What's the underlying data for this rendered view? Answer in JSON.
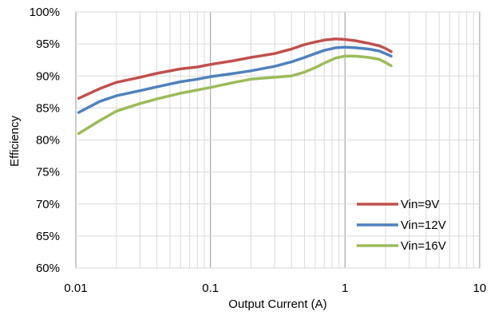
{
  "chart_data": {
    "type": "line",
    "title": "",
    "xlabel": "Output Current (A)",
    "ylabel": "Efficiency",
    "x_scale": "log",
    "xlim": [
      0.01,
      10
    ],
    "ylim": [
      0.6,
      1.0
    ],
    "x_ticks": [
      {
        "value": 0.01,
        "label": "0.01"
      },
      {
        "value": 0.1,
        "label": "0.1"
      },
      {
        "value": 1,
        "label": "1"
      },
      {
        "value": 10,
        "label": "10"
      }
    ],
    "y_ticks": [
      {
        "value": 0.6,
        "label": "60%"
      },
      {
        "value": 0.65,
        "label": "65%"
      },
      {
        "value": 0.7,
        "label": "70%"
      },
      {
        "value": 0.75,
        "label": "75%"
      },
      {
        "value": 0.8,
        "label": "80%"
      },
      {
        "value": 0.85,
        "label": "85%"
      },
      {
        "value": 0.9,
        "label": "90%"
      },
      {
        "value": 0.95,
        "label": "95%"
      },
      {
        "value": 1.0,
        "label": "100%"
      }
    ],
    "grid": true,
    "legend_position": "bottom-right",
    "series": [
      {
        "name": "Vin=9V",
        "color": "#c0504d",
        "points": [
          [
            0.0105,
            0.865
          ],
          [
            0.015,
            0.88
          ],
          [
            0.02,
            0.89
          ],
          [
            0.03,
            0.898
          ],
          [
            0.04,
            0.904
          ],
          [
            0.06,
            0.911
          ],
          [
            0.08,
            0.914
          ],
          [
            0.1,
            0.918
          ],
          [
            0.15,
            0.924
          ],
          [
            0.2,
            0.929
          ],
          [
            0.3,
            0.935
          ],
          [
            0.4,
            0.942
          ],
          [
            0.5,
            0.949
          ],
          [
            0.6,
            0.953
          ],
          [
            0.7,
            0.956
          ],
          [
            0.85,
            0.958
          ],
          [
            1.0,
            0.957
          ],
          [
            1.2,
            0.955
          ],
          [
            1.5,
            0.951
          ],
          [
            1.8,
            0.947
          ],
          [
            2.0,
            0.943
          ],
          [
            2.2,
            0.938
          ]
        ]
      },
      {
        "name": "Vin=12V",
        "color": "#4f81bd",
        "points": [
          [
            0.0105,
            0.843
          ],
          [
            0.015,
            0.86
          ],
          [
            0.02,
            0.869
          ],
          [
            0.03,
            0.877
          ],
          [
            0.04,
            0.883
          ],
          [
            0.06,
            0.891
          ],
          [
            0.08,
            0.895
          ],
          [
            0.1,
            0.899
          ],
          [
            0.15,
            0.904
          ],
          [
            0.2,
            0.908
          ],
          [
            0.3,
            0.915
          ],
          [
            0.4,
            0.922
          ],
          [
            0.5,
            0.929
          ],
          [
            0.6,
            0.935
          ],
          [
            0.7,
            0.94
          ],
          [
            0.85,
            0.944
          ],
          [
            1.0,
            0.945
          ],
          [
            1.2,
            0.944
          ],
          [
            1.5,
            0.942
          ],
          [
            1.8,
            0.939
          ],
          [
            2.0,
            0.935
          ],
          [
            2.2,
            0.931
          ]
        ]
      },
      {
        "name": "Vin=16V",
        "color": "#9bbb59",
        "points": [
          [
            0.0105,
            0.81
          ],
          [
            0.015,
            0.83
          ],
          [
            0.02,
            0.845
          ],
          [
            0.03,
            0.857
          ],
          [
            0.04,
            0.864
          ],
          [
            0.06,
            0.873
          ],
          [
            0.08,
            0.878
          ],
          [
            0.1,
            0.882
          ],
          [
            0.15,
            0.89
          ],
          [
            0.2,
            0.895
          ],
          [
            0.3,
            0.898
          ],
          [
            0.4,
            0.9
          ],
          [
            0.5,
            0.906
          ],
          [
            0.6,
            0.913
          ],
          [
            0.7,
            0.92
          ],
          [
            0.85,
            0.928
          ],
          [
            1.0,
            0.931
          ],
          [
            1.2,
            0.931
          ],
          [
            1.5,
            0.929
          ],
          [
            1.8,
            0.926
          ],
          [
            2.0,
            0.921
          ],
          [
            2.2,
            0.916
          ]
        ]
      }
    ]
  },
  "colors": {
    "grid_major": "#a6a6a6",
    "grid_minor": "#d9d9d9",
    "axis": "#a6a6a6"
  }
}
